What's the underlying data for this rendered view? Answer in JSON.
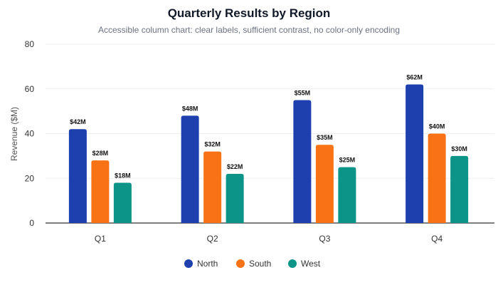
{
  "chart_data": {
    "type": "bar",
    "title": "Quarterly Results by Region",
    "subtitle": "Accessible column chart: clear labels, sufficient contrast, no color-only encoding",
    "xlabel": "",
    "ylabel": "Revenue ($M)",
    "ylim": [
      0,
      80
    ],
    "yticks": [
      0,
      20,
      40,
      60,
      80
    ],
    "grid": true,
    "legend_position": "bottom",
    "categories": [
      "Q1",
      "Q2",
      "Q3",
      "Q4"
    ],
    "series": [
      {
        "name": "North",
        "color": "#1e40af",
        "values": [
          42,
          48,
          55,
          62
        ],
        "labels": [
          "$42M",
          "$48M",
          "$55M",
          "$62M"
        ]
      },
      {
        "name": "South",
        "color": "#f97316",
        "values": [
          28,
          32,
          35,
          40
        ],
        "labels": [
          "$28M",
          "$32M",
          "$35M",
          "$40M"
        ]
      },
      {
        "name": "West",
        "color": "#0d9488",
        "values": [
          18,
          22,
          25,
          30
        ],
        "labels": [
          "$18M",
          "$22M",
          "$25M",
          "$30M"
        ]
      }
    ]
  }
}
